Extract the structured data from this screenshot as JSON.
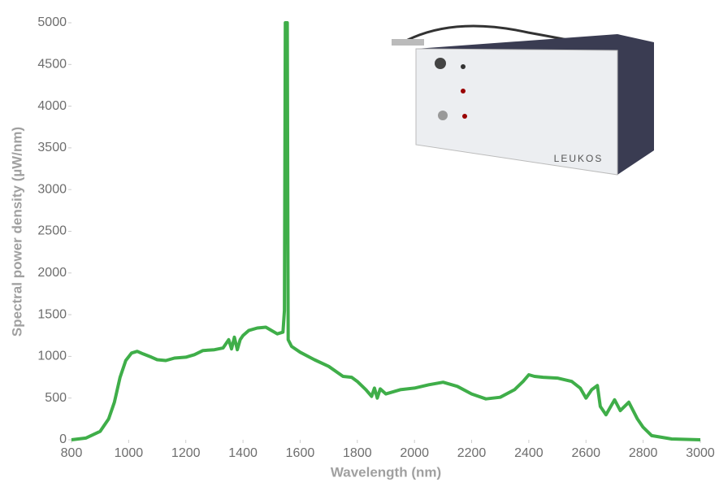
{
  "chart_data": {
    "type": "line",
    "xlabel": "Wavelength (nm)",
    "ylabel": "Spectral power density (µW/nm)",
    "product_label": "LEUKOS",
    "color": "#3fae49",
    "x": [
      800,
      850,
      900,
      930,
      950,
      970,
      990,
      1010,
      1030,
      1050,
      1080,
      1100,
      1130,
      1160,
      1200,
      1230,
      1260,
      1300,
      1330,
      1350,
      1360,
      1370,
      1380,
      1390,
      1400,
      1420,
      1450,
      1480,
      1500,
      1520,
      1540,
      1545,
      1548,
      1555,
      1558,
      1570,
      1600,
      1650,
      1700,
      1750,
      1780,
      1800,
      1830,
      1850,
      1860,
      1870,
      1880,
      1900,
      1950,
      2000,
      2050,
      2100,
      2150,
      2200,
      2250,
      2300,
      2350,
      2380,
      2400,
      2420,
      2450,
      2500,
      2550,
      2580,
      2600,
      2620,
      2640,
      2650,
      2670,
      2700,
      2720,
      2750,
      2780,
      2800,
      2830,
      2900,
      3000
    ],
    "values": [
      0,
      20,
      100,
      250,
      450,
      750,
      950,
      1040,
      1060,
      1030,
      990,
      960,
      950,
      980,
      990,
      1020,
      1070,
      1080,
      1100,
      1200,
      1090,
      1230,
      1080,
      1200,
      1250,
      1310,
      1340,
      1350,
      1310,
      1270,
      1290,
      1550,
      5000,
      5000,
      1200,
      1120,
      1050,
      960,
      880,
      760,
      750,
      700,
      600,
      520,
      620,
      500,
      610,
      550,
      600,
      620,
      660,
      690,
      640,
      550,
      490,
      510,
      600,
      700,
      780,
      760,
      750,
      740,
      700,
      620,
      500,
      600,
      650,
      400,
      300,
      480,
      350,
      450,
      250,
      150,
      50,
      10,
      0
    ],
    "xlim": [
      800,
      3000
    ],
    "ylim": [
      0,
      5000
    ],
    "xticks": [
      800,
      1000,
      1200,
      1400,
      1600,
      1800,
      2000,
      2200,
      2400,
      2600,
      2800,
      3000
    ],
    "yticks": [
      0,
      500,
      1000,
      1500,
      2000,
      2500,
      3000,
      3500,
      4000,
      4500,
      5000
    ]
  }
}
